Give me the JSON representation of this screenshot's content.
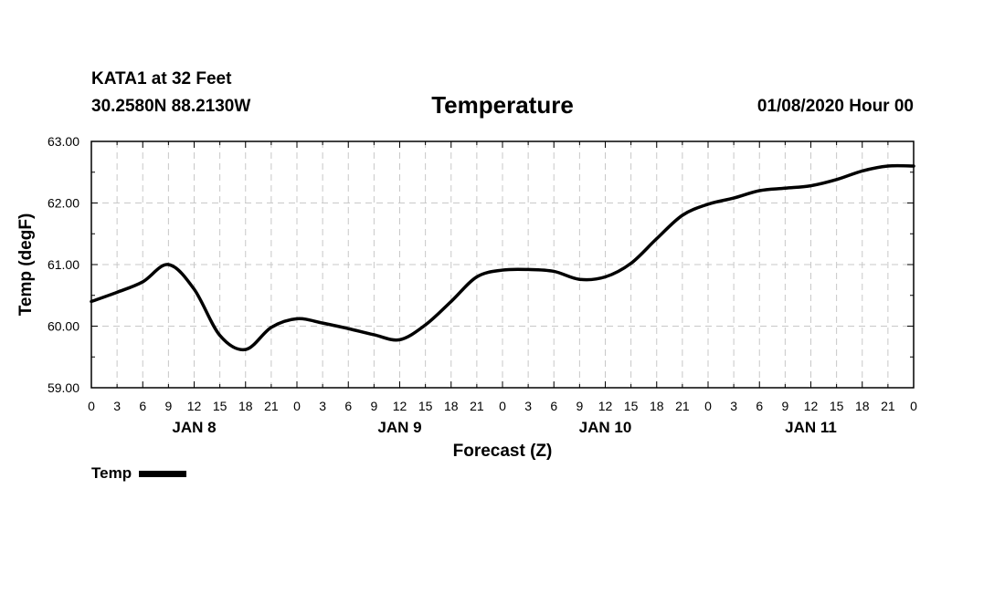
{
  "header": {
    "station": "KATA1 at 32 Feet",
    "coords": "30.2580N 88.2130W",
    "issued": "01/08/2020 Hour 00"
  },
  "chart_data": {
    "type": "line",
    "title": "Temperature",
    "xlabel": "Forecast (Z)",
    "ylabel": "Temp (degF)",
    "xlim": [
      0,
      96
    ],
    "ylim": [
      59,
      63
    ],
    "grid": true,
    "ytick_labels": [
      "59.00",
      "60.00",
      "61.00",
      "62.00",
      "63.00"
    ],
    "xtick_labels": [
      "0",
      "3",
      "6",
      "9",
      "12",
      "15",
      "18",
      "21",
      "0",
      "3",
      "6",
      "9",
      "12",
      "15",
      "18",
      "21",
      "0",
      "3",
      "6",
      "9",
      "12",
      "15",
      "18",
      "21",
      "0",
      "3",
      "6",
      "9",
      "12",
      "15",
      "18",
      "21",
      "0"
    ],
    "day_labels": [
      "JAN 8",
      "JAN 9",
      "JAN 10",
      "JAN 11"
    ],
    "legend": {
      "position": "bottom-left",
      "entries": [
        "Temp"
      ]
    },
    "series": [
      {
        "name": "Temp",
        "x": [
          0,
          3,
          6,
          9,
          12,
          15,
          18,
          21,
          24,
          27,
          30,
          33,
          36,
          39,
          42,
          45,
          48,
          51,
          54,
          57,
          60,
          63,
          66,
          69,
          72,
          75,
          78,
          81,
          84,
          87,
          90,
          93,
          96
        ],
        "y": [
          60.4,
          60.55,
          60.72,
          61.0,
          60.6,
          59.85,
          59.62,
          59.98,
          60.12,
          60.05,
          59.96,
          59.86,
          59.78,
          60.02,
          60.4,
          60.8,
          60.91,
          60.92,
          60.89,
          60.76,
          60.8,
          61.02,
          61.42,
          61.8,
          61.98,
          62.08,
          62.2,
          62.24,
          62.28,
          62.38,
          62.52,
          62.6,
          62.6
        ]
      }
    ]
  }
}
